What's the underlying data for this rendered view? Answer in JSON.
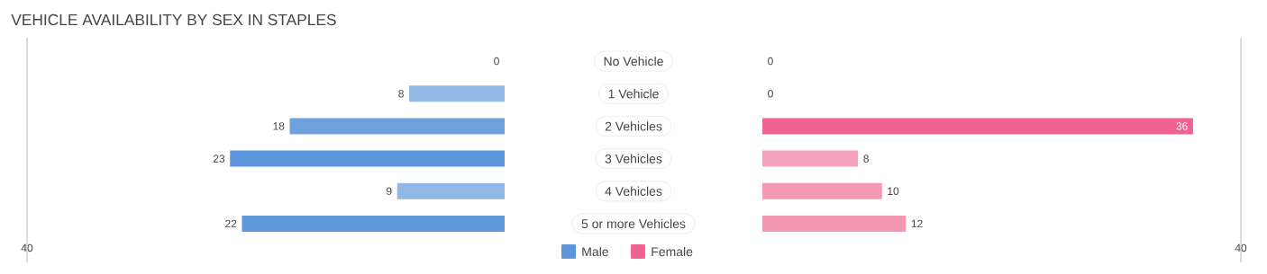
{
  "chart_data": [
    {
      "type": "bar",
      "orientation": "horizontal",
      "title": "VEHICLE AVAILABILITY BY SEX IN STAPLES",
      "categories": [
        "No Vehicle",
        "1 Vehicle",
        "2 Vehicles",
        "3 Vehicles",
        "4 Vehicles",
        "5 or more Vehicles"
      ],
      "series": [
        {
          "name": "Male",
          "color": "#5b95da",
          "colors": [
            "#aac8ea",
            "#93b9e6",
            "#6fa1dd",
            "#5b95da",
            "#90b7e5",
            "#5f97db"
          ],
          "values": [
            0,
            8,
            18,
            23,
            9,
            22
          ]
        }
      ],
      "xlim": [
        40,
        0
      ],
      "xticks": [
        40
      ],
      "data_labels": true,
      "legend": "bottom"
    },
    {
      "type": "bar",
      "orientation": "horizontal",
      "categories": [
        null,
        null,
        null,
        null,
        null,
        null
      ],
      "series": [
        {
          "name": "Female",
          "color": "#f06292",
          "colors": [
            "#f6b6cb",
            "#f7aec6",
            "#f06292",
            "#f5a3bd",
            "#f49ab7",
            "#f497b5"
          ],
          "values": [
            0,
            0,
            36,
            8,
            10,
            12
          ]
        }
      ],
      "xlim": [
        0,
        40
      ],
      "xticks": [
        40
      ],
      "data_labels": true,
      "legend": "bottom",
      "tick_labels": "x"
    }
  ]
}
